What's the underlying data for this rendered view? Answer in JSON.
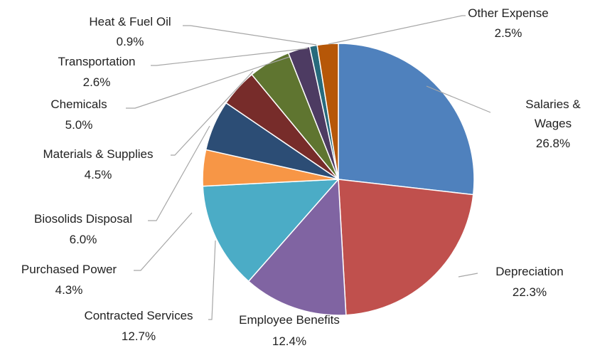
{
  "chart_data": {
    "type": "pie",
    "title": "",
    "start": "top",
    "direction": "clockwise",
    "legend": "none",
    "slices": [
      {
        "label": "Salaries & Wages",
        "value": 26.8,
        "value_label": "26.8%",
        "color": "#4F81BD"
      },
      {
        "label": "Depreciation",
        "value": 22.3,
        "value_label": "22.3%",
        "color": "#C0504D"
      },
      {
        "label": "Employee Benefits",
        "value": 12.4,
        "value_label": "12.4%",
        "color": "#8064A2"
      },
      {
        "label": "Contracted Services",
        "value": 12.7,
        "value_label": "12.7%",
        "color": "#4BACC6"
      },
      {
        "label": "Purchased Power",
        "value": 4.3,
        "value_label": "4.3%",
        "color": "#F79646"
      },
      {
        "label": "Biosolids Disposal",
        "value": 6.0,
        "value_label": "6.0%",
        "color": "#2C4D75"
      },
      {
        "label": "Materials & Supplies",
        "value": 4.5,
        "value_label": "4.5%",
        "color": "#772C2A"
      },
      {
        "label": "Chemicals",
        "value": 5.0,
        "value_label": "5.0%",
        "color": "#5F7530"
      },
      {
        "label": "Transportation",
        "value": 2.6,
        "value_label": "2.6%",
        "color": "#4D3B62"
      },
      {
        "label": "Heat & Fuel Oil",
        "value": 0.9,
        "value_label": "0.9%",
        "color": "#276A7C"
      },
      {
        "label": "Other Expense",
        "value": 2.5,
        "value_label": "2.5%",
        "color": "#B65708"
      }
    ]
  }
}
